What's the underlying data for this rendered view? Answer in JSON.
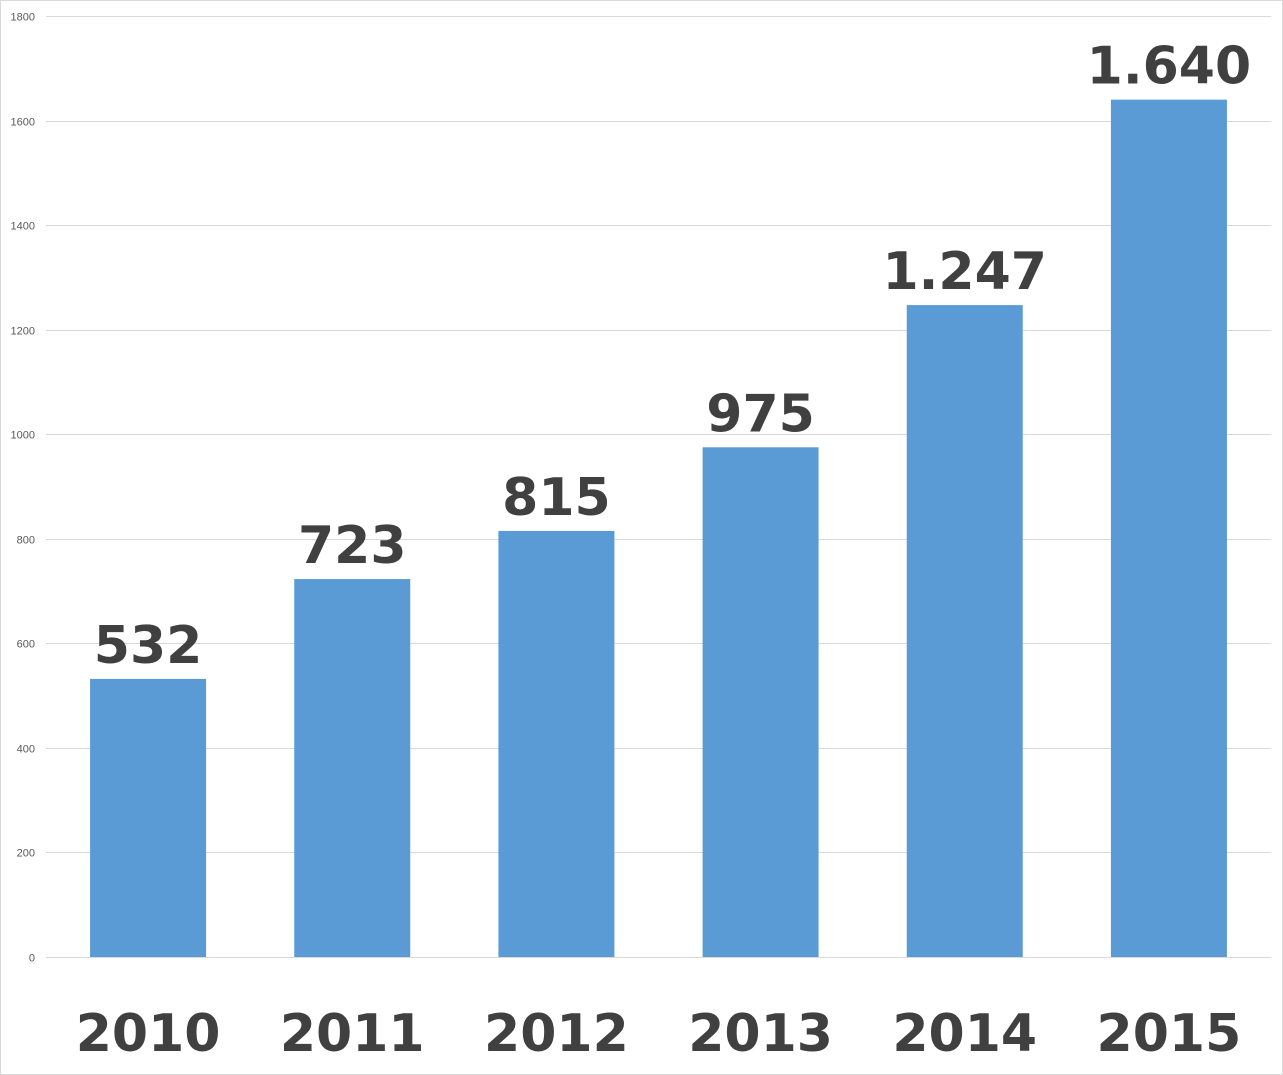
{
  "chart_data": {
    "type": "bar",
    "title": "",
    "xlabel": "",
    "ylabel": "",
    "categories": [
      "2010",
      "2011",
      "2012",
      "2013",
      "2014",
      "2015"
    ],
    "values": [
      532,
      723,
      815,
      975,
      1247,
      1640
    ],
    "data_labels": [
      "532",
      "723",
      "815",
      "975",
      "1.247",
      "1.640"
    ],
    "ylim": [
      0,
      1800
    ],
    "yticks": [
      0,
      200,
      400,
      600,
      800,
      1000,
      1200,
      1400,
      1600,
      1800
    ],
    "grid": true,
    "legend": "none",
    "colors": {
      "bar": "#5b9bd5",
      "grid": "#d9d9d9",
      "label": "#404040",
      "tick": "#595959"
    }
  }
}
